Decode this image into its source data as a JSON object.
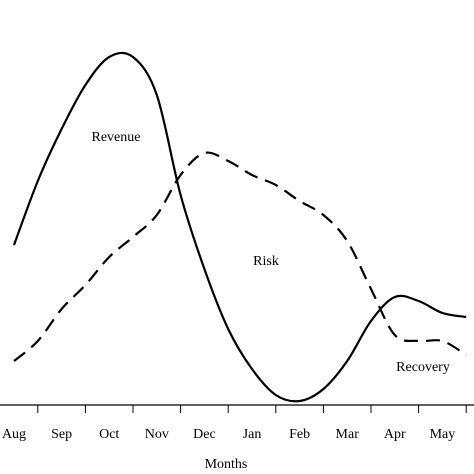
{
  "chart_data": {
    "type": "line",
    "x_label": "Months",
    "annotations": [
      "Revenue",
      "Risk",
      "Recovery"
    ],
    "categories": [
      "Aug",
      null,
      "Sep",
      null,
      "Oct",
      null,
      "Nov",
      null,
      "Dec",
      null,
      "Jan",
      null,
      "Feb",
      null,
      "Mar",
      null,
      "Apr",
      null,
      "May",
      null
    ],
    "series": [
      {
        "color": "#000000",
        "style": "solid",
        "values": [
          40,
          56,
          69,
          80,
          87,
          87,
          77.5,
          52.5,
          34,
          19,
          9,
          2.5,
          1,
          4,
          11,
          21,
          27,
          26,
          23,
          22
        ]
      },
      {
        "color": "#000000",
        "style": "dashed",
        "values": [
          11,
          16,
          24,
          30,
          37,
          42,
          47.5,
          57.5,
          63,
          61,
          57.5,
          55,
          51,
          47.5,
          41,
          29,
          17.5,
          16,
          16,
          12.5
        ]
      }
    ]
  }
}
